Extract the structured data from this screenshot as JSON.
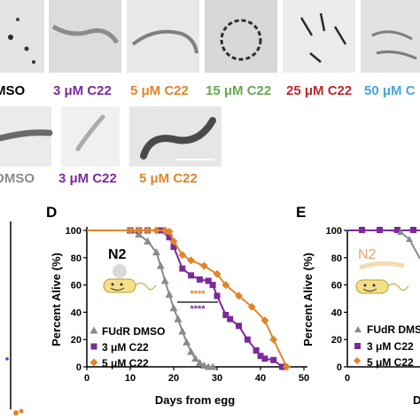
{
  "colors": {
    "dmso": "#8a8a8a",
    "c3": "#7a2a9a",
    "c5": "#e0852a",
    "c15": "#6aa84f",
    "c25": "#c0272d",
    "c50": "#4aa3df"
  },
  "top_row": {
    "labels": [
      {
        "text": "MSO",
        "color": "#000000"
      },
      {
        "text": "3 μM C22",
        "color": "#7a2a9a"
      },
      {
        "text": "5 μM C22",
        "color": "#e0852a"
      },
      {
        "text": "15 μM C22",
        "color": "#6aa84f"
      },
      {
        "text": "25 μM C22",
        "color": "#c0272d"
      },
      {
        "text": "50 μM C",
        "color": "#4aa3df"
      }
    ]
  },
  "middle_row": {
    "labels": [
      {
        "text": "DMSO",
        "color": "#8a8a8a"
      },
      {
        "text": "3 μM C22",
        "color": "#7a2a9a"
      },
      {
        "text": "5 μM C22",
        "color": "#e0852a"
      }
    ]
  },
  "panels": {
    "d_letter": "D",
    "e_letter": "E",
    "n2_label": "N2",
    "n2_label_e": "N2",
    "sig_orange": "****",
    "sig_purple": "****"
  },
  "legend_e": [
    {
      "text": "FUdR DMS"
    },
    {
      "text": "3 μM C22"
    },
    {
      "text": "5 μM C22"
    }
  ],
  "axis_e": {
    "ylabel": "Percent Alive (%)",
    "yticks": [
      "100",
      "80",
      "60",
      "40",
      "20",
      "0"
    ],
    "xticks": [
      "0"
    ]
  },
  "chart_data": {
    "type": "line",
    "xlabel": "Days from egg",
    "ylabel": "Percent Alive (%)",
    "xlim": [
      0,
      50
    ],
    "ylim": [
      0,
      100
    ],
    "xticks": [
      0,
      10,
      20,
      30,
      40,
      50
    ],
    "yticks": [
      0,
      20,
      40,
      60,
      80,
      100
    ],
    "grid": false,
    "legend": "bottom-left",
    "series": [
      {
        "name": "FUdR DMSO",
        "color": "#8a8a8a",
        "marker": "triangle",
        "x": [
          0,
          10,
          12,
          14,
          16,
          17,
          18,
          19,
          20,
          21,
          22,
          23,
          24,
          25,
          26,
          27,
          28,
          29
        ],
        "y": [
          100,
          100,
          97,
          92,
          84,
          74,
          63,
          53,
          43,
          35,
          26,
          18,
          11,
          6,
          3,
          1,
          0,
          0
        ]
      },
      {
        "name": "3 μM C22",
        "color": "#7a2a9a",
        "marker": "square",
        "x": [
          0,
          10,
          12,
          14,
          17,
          19,
          20,
          22,
          24,
          26,
          28,
          29,
          30,
          32,
          33,
          35,
          37,
          39,
          40,
          41,
          43,
          45
        ],
        "y": [
          100,
          100,
          100,
          100,
          100,
          95,
          88,
          72,
          67,
          64,
          63,
          60,
          52,
          38,
          35,
          30,
          20,
          12,
          8,
          6,
          5,
          0
        ]
      },
      {
        "name": "5 μM C22",
        "color": "#e0852a",
        "marker": "diamond",
        "x": [
          0,
          10,
          12,
          14,
          16,
          18,
          19,
          20,
          22,
          24,
          27,
          30,
          32,
          35,
          38,
          41,
          43,
          46
        ],
        "y": [
          100,
          100,
          100,
          100,
          100,
          100,
          99,
          92,
          82,
          78,
          74,
          68,
          60,
          52,
          44,
          34,
          20,
          0
        ]
      }
    ]
  }
}
